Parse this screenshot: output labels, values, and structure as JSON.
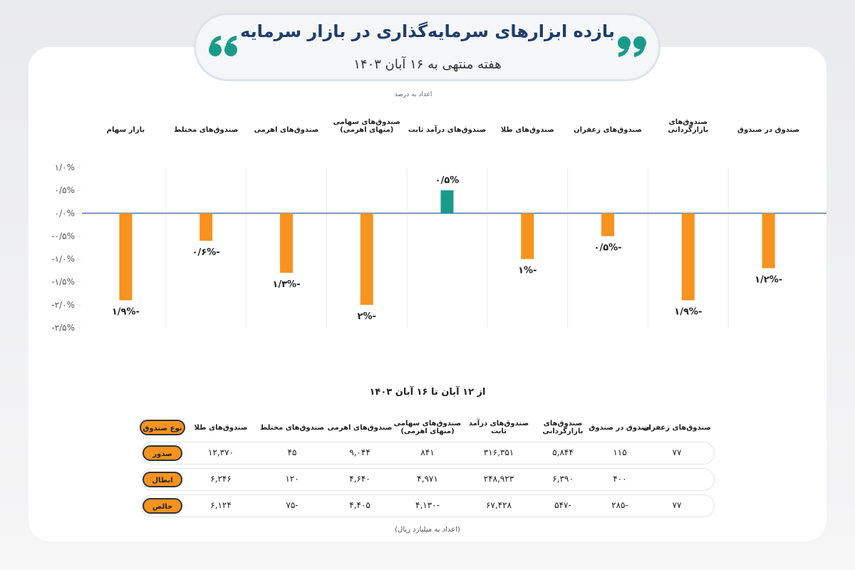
{
  "chart_data": {
    "type": "bar",
    "title": "بازده ابزارهای سرمایه‌گذاری در بازار سرمایه",
    "subtitle": "هفته منتهی به ۱۶ آبان ۱۴۰۳",
    "unit_note": "اعداد به درصد",
    "categories": [
      "صندوق در صندوق",
      "صندوق‌های بازارگردانی",
      "صندوق‌های زعفران",
      "صندوق‌های طلا",
      "صندوق‌های درآمد ثابت",
      "صندوق‌های سهامی (منهای اهرمی)",
      "صندوق‌های اهرمی",
      "صندوق‌های مختلط",
      "بازار سهام"
    ],
    "values": [
      -1.2,
      -1.9,
      -0.5,
      -1,
      0.5,
      -2,
      -1.3,
      -0.6,
      -1.9
    ],
    "value_labels": [
      "-۱/۲%",
      "-۱/۹%",
      "-۰/۵%",
      "-۱%",
      "۰/۵%",
      "-۲%",
      "-۱/۳%",
      "-۰/۶%",
      "-۱/۹%"
    ],
    "negative_color": "#f7931e",
    "positive_color": "#1a9b8a",
    "ylim": [
      -2.5,
      1
    ],
    "yticks": [
      {
        "value": 1,
        "label": "۱/۰%"
      },
      {
        "value": 0.5,
        "label": "۰/۵%"
      },
      {
        "value": 0,
        "label": "۰/۰%"
      },
      {
        "value": -0.5,
        "label": "-۰/۵%"
      },
      {
        "value": -1,
        "label": "-۱/۰%"
      },
      {
        "value": -1.5,
        "label": "-۱/۵%"
      },
      {
        "value": -2,
        "label": "-۲/۰%"
      },
      {
        "value": -2.5,
        "label": "-۲/۵%"
      }
    ],
    "grid": false
  },
  "table": {
    "title": "از ۱۲ آبان تا ۱۶ آبان ۱۴۰۳",
    "header": [
      "نوع صندوق",
      "صندوق‌های طلا",
      "صندوق‌های مختلط",
      "صندوق‌های اهرمی",
      "صندوق‌های سهامی (منهای اهرمی)",
      "صندوق‌های درآمد ثابت",
      "صندوق‌های بازارگردانی",
      "صندوق در صندوق",
      "صندوق‌های زعفران"
    ],
    "rows": [
      [
        "صدور",
        "۱۲,۳۷۰",
        "۴۵",
        "۹,۰۴۴",
        "۸۴۱",
        "۳۱۶,۳۵۱",
        "۵,۸۴۴",
        "۱۱۵",
        "۷۷"
      ],
      [
        "ابطال",
        "۶,۲۴۶",
        "۱۲۰",
        "۴,۶۴۰",
        "۴,۹۷۱",
        "۲۴۸,۹۲۳",
        "۶,۳۹۰",
        "۴۰۰",
        null
      ],
      [
        "خالص",
        "۶,۱۲۴",
        "-۷۵",
        "۴,۴۰۵",
        "-۴,۱۳۰",
        "۶۷,۴۲۸",
        "-۵۴۷",
        "-۲۸۵",
        "۷۷"
      ]
    ],
    "note": "(اعداد به میلیارد ریال)"
  }
}
